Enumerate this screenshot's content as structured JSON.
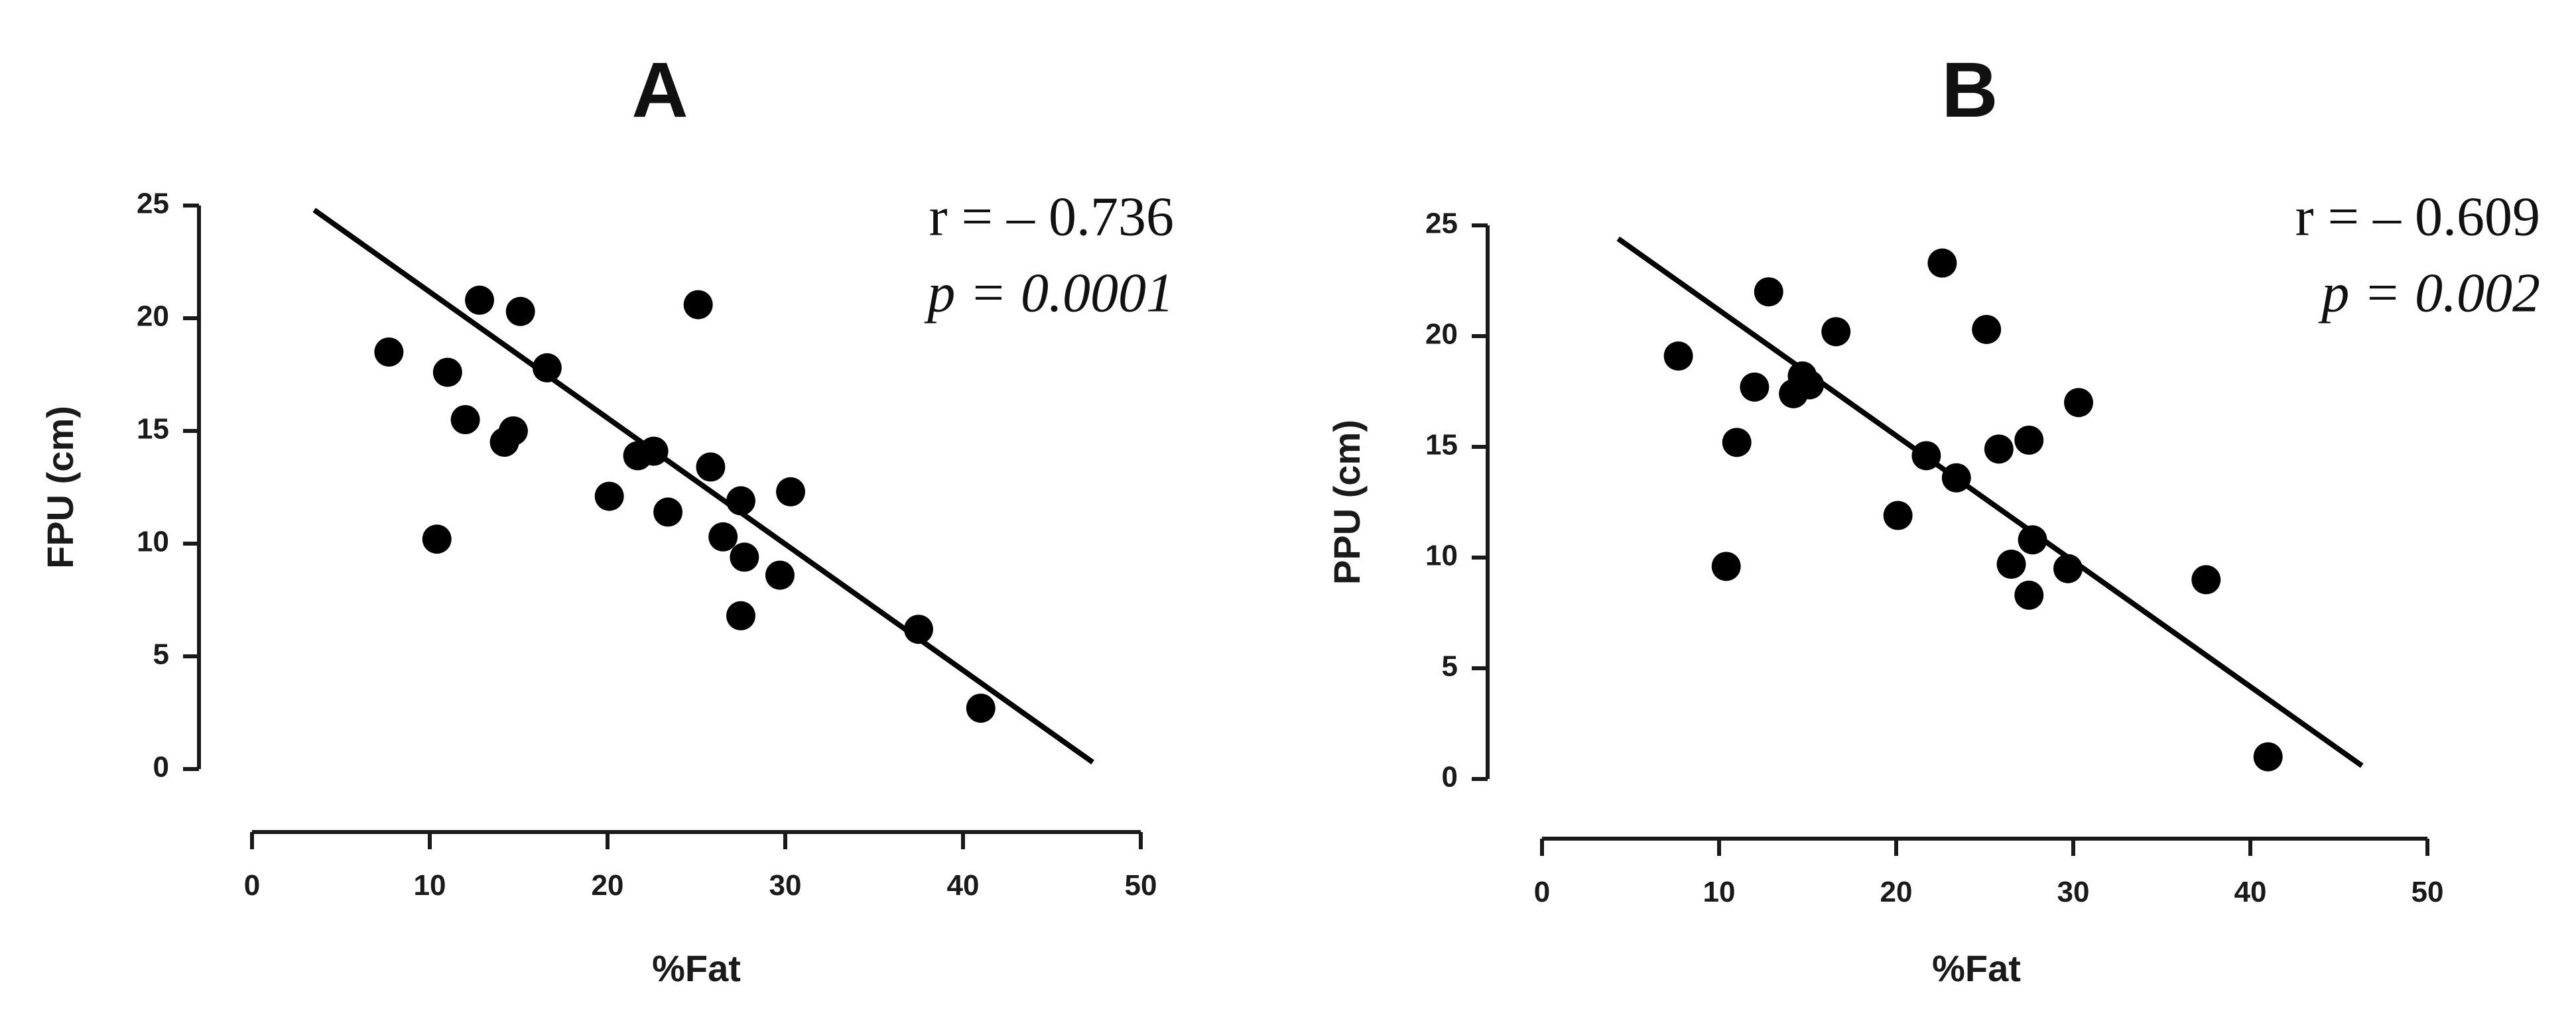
{
  "chart_data": [
    {
      "type": "scatter",
      "title": "A",
      "xlabel": "%Fat",
      "ylabel": "FPU (cm)",
      "xlim": [
        0,
        50
      ],
      "ylim": [
        0,
        25
      ],
      "xticks": [
        "0",
        "10",
        "20",
        "30",
        "40",
        "50"
      ],
      "yticks": [
        "0",
        "5",
        "10",
        "15",
        "20",
        "25"
      ],
      "grid": false,
      "stats": {
        "r": "r = – 0.736",
        "p": "p = 0.0001"
      },
      "trendline": {
        "x": [
          3.5,
          47.3
        ],
        "y": [
          24.8,
          0.3
        ]
      },
      "points": [
        {
          "x": 7.7,
          "y": 18.5
        },
        {
          "x": 10.4,
          "y": 10.2
        },
        {
          "x": 11.0,
          "y": 17.6
        },
        {
          "x": 12.0,
          "y": 15.5
        },
        {
          "x": 12.8,
          "y": 20.8
        },
        {
          "x": 14.2,
          "y": 14.5
        },
        {
          "x": 14.7,
          "y": 15.0
        },
        {
          "x": 15.1,
          "y": 20.3
        },
        {
          "x": 16.6,
          "y": 17.8
        },
        {
          "x": 20.1,
          "y": 12.1
        },
        {
          "x": 21.7,
          "y": 13.9
        },
        {
          "x": 22.6,
          "y": 14.1
        },
        {
          "x": 23.4,
          "y": 11.4
        },
        {
          "x": 25.1,
          "y": 20.6
        },
        {
          "x": 25.8,
          "y": 13.4
        },
        {
          "x": 26.5,
          "y": 10.3
        },
        {
          "x": 27.5,
          "y": 11.9
        },
        {
          "x": 27.7,
          "y": 9.4
        },
        {
          "x": 27.5,
          "y": 6.8
        },
        {
          "x": 29.7,
          "y": 8.6
        },
        {
          "x": 30.3,
          "y": 12.3
        },
        {
          "x": 37.5,
          "y": 6.2
        },
        {
          "x": 41.0,
          "y": 2.7
        }
      ]
    },
    {
      "type": "scatter",
      "title": "B",
      "xlabel": "%Fat",
      "ylabel": "PPU (cm)",
      "xlim": [
        0,
        50
      ],
      "ylim": [
        0,
        25
      ],
      "xticks": [
        "0",
        "10",
        "20",
        "30",
        "40",
        "50"
      ],
      "yticks": [
        "0",
        "5",
        "10",
        "15",
        "20",
        "25"
      ],
      "grid": false,
      "stats": {
        "r": "r = – 0.609",
        "p": "p = 0.002"
      },
      "trendline": {
        "x": [
          4.3,
          46.3
        ],
        "y": [
          24.4,
          0.6
        ]
      },
      "points": [
        {
          "x": 7.7,
          "y": 19.1
        },
        {
          "x": 10.4,
          "y": 9.6
        },
        {
          "x": 11.0,
          "y": 15.2
        },
        {
          "x": 12.0,
          "y": 17.7
        },
        {
          "x": 12.8,
          "y": 22.0
        },
        {
          "x": 14.2,
          "y": 17.4
        },
        {
          "x": 14.7,
          "y": 18.2
        },
        {
          "x": 15.1,
          "y": 17.8
        },
        {
          "x": 16.6,
          "y": 20.2
        },
        {
          "x": 20.1,
          "y": 11.9
        },
        {
          "x": 21.7,
          "y": 14.6
        },
        {
          "x": 22.6,
          "y": 23.3
        },
        {
          "x": 23.4,
          "y": 13.6
        },
        {
          "x": 25.1,
          "y": 20.3
        },
        {
          "x": 25.8,
          "y": 14.9
        },
        {
          "x": 26.5,
          "y": 9.7
        },
        {
          "x": 27.5,
          "y": 15.3
        },
        {
          "x": 27.7,
          "y": 10.8
        },
        {
          "x": 27.5,
          "y": 8.3
        },
        {
          "x": 29.7,
          "y": 9.5
        },
        {
          "x": 30.3,
          "y": 17.0
        },
        {
          "x": 37.5,
          "y": 9.0
        },
        {
          "x": 41.0,
          "y": 1.0
        }
      ]
    }
  ]
}
